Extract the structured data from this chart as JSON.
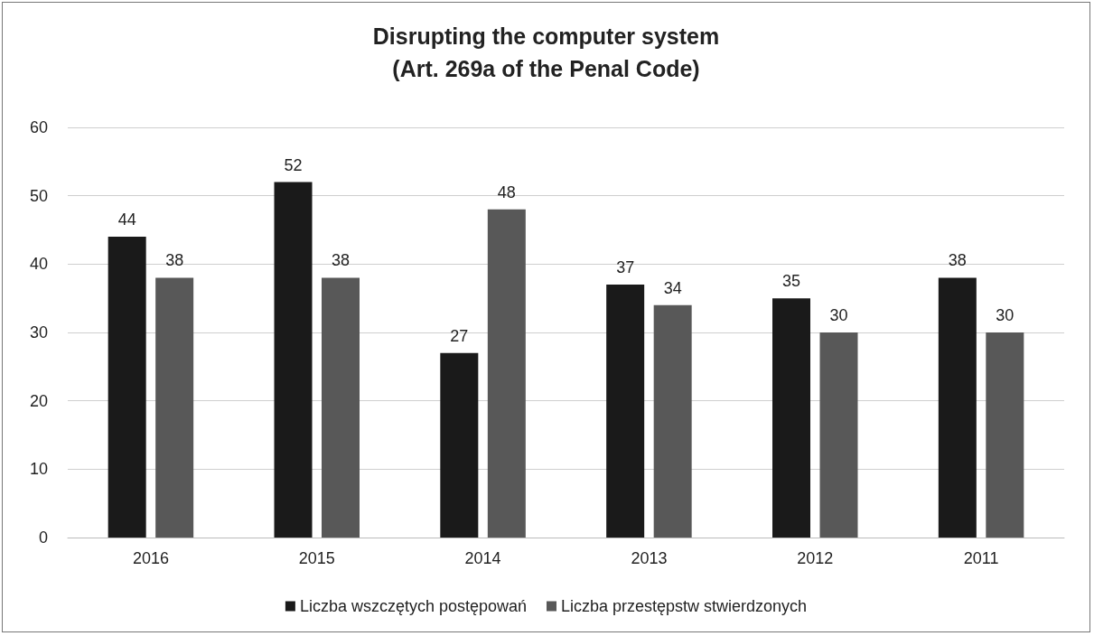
{
  "chart_data": {
    "type": "bar",
    "title": "Disrupting the computer system\n(Art. 269a of the Penal Code)",
    "categories": [
      "2016",
      "2015",
      "2014",
      "2013",
      "2012",
      "2011"
    ],
    "series": [
      {
        "name": "Liczba wszczętych postępowań",
        "color": "#1a1a1a",
        "values": [
          44,
          52,
          27,
          37,
          35,
          38
        ]
      },
      {
        "name": "Liczba przestępstw stwierdzonych",
        "color": "#585858",
        "values": [
          38,
          38,
          48,
          34,
          30,
          30
        ]
      }
    ],
    "ylim": [
      0,
      60
    ],
    "yticks": [
      0,
      10,
      20,
      30,
      40,
      50,
      60
    ],
    "grid": "y",
    "legend": "bottom",
    "data_labels": true
  }
}
